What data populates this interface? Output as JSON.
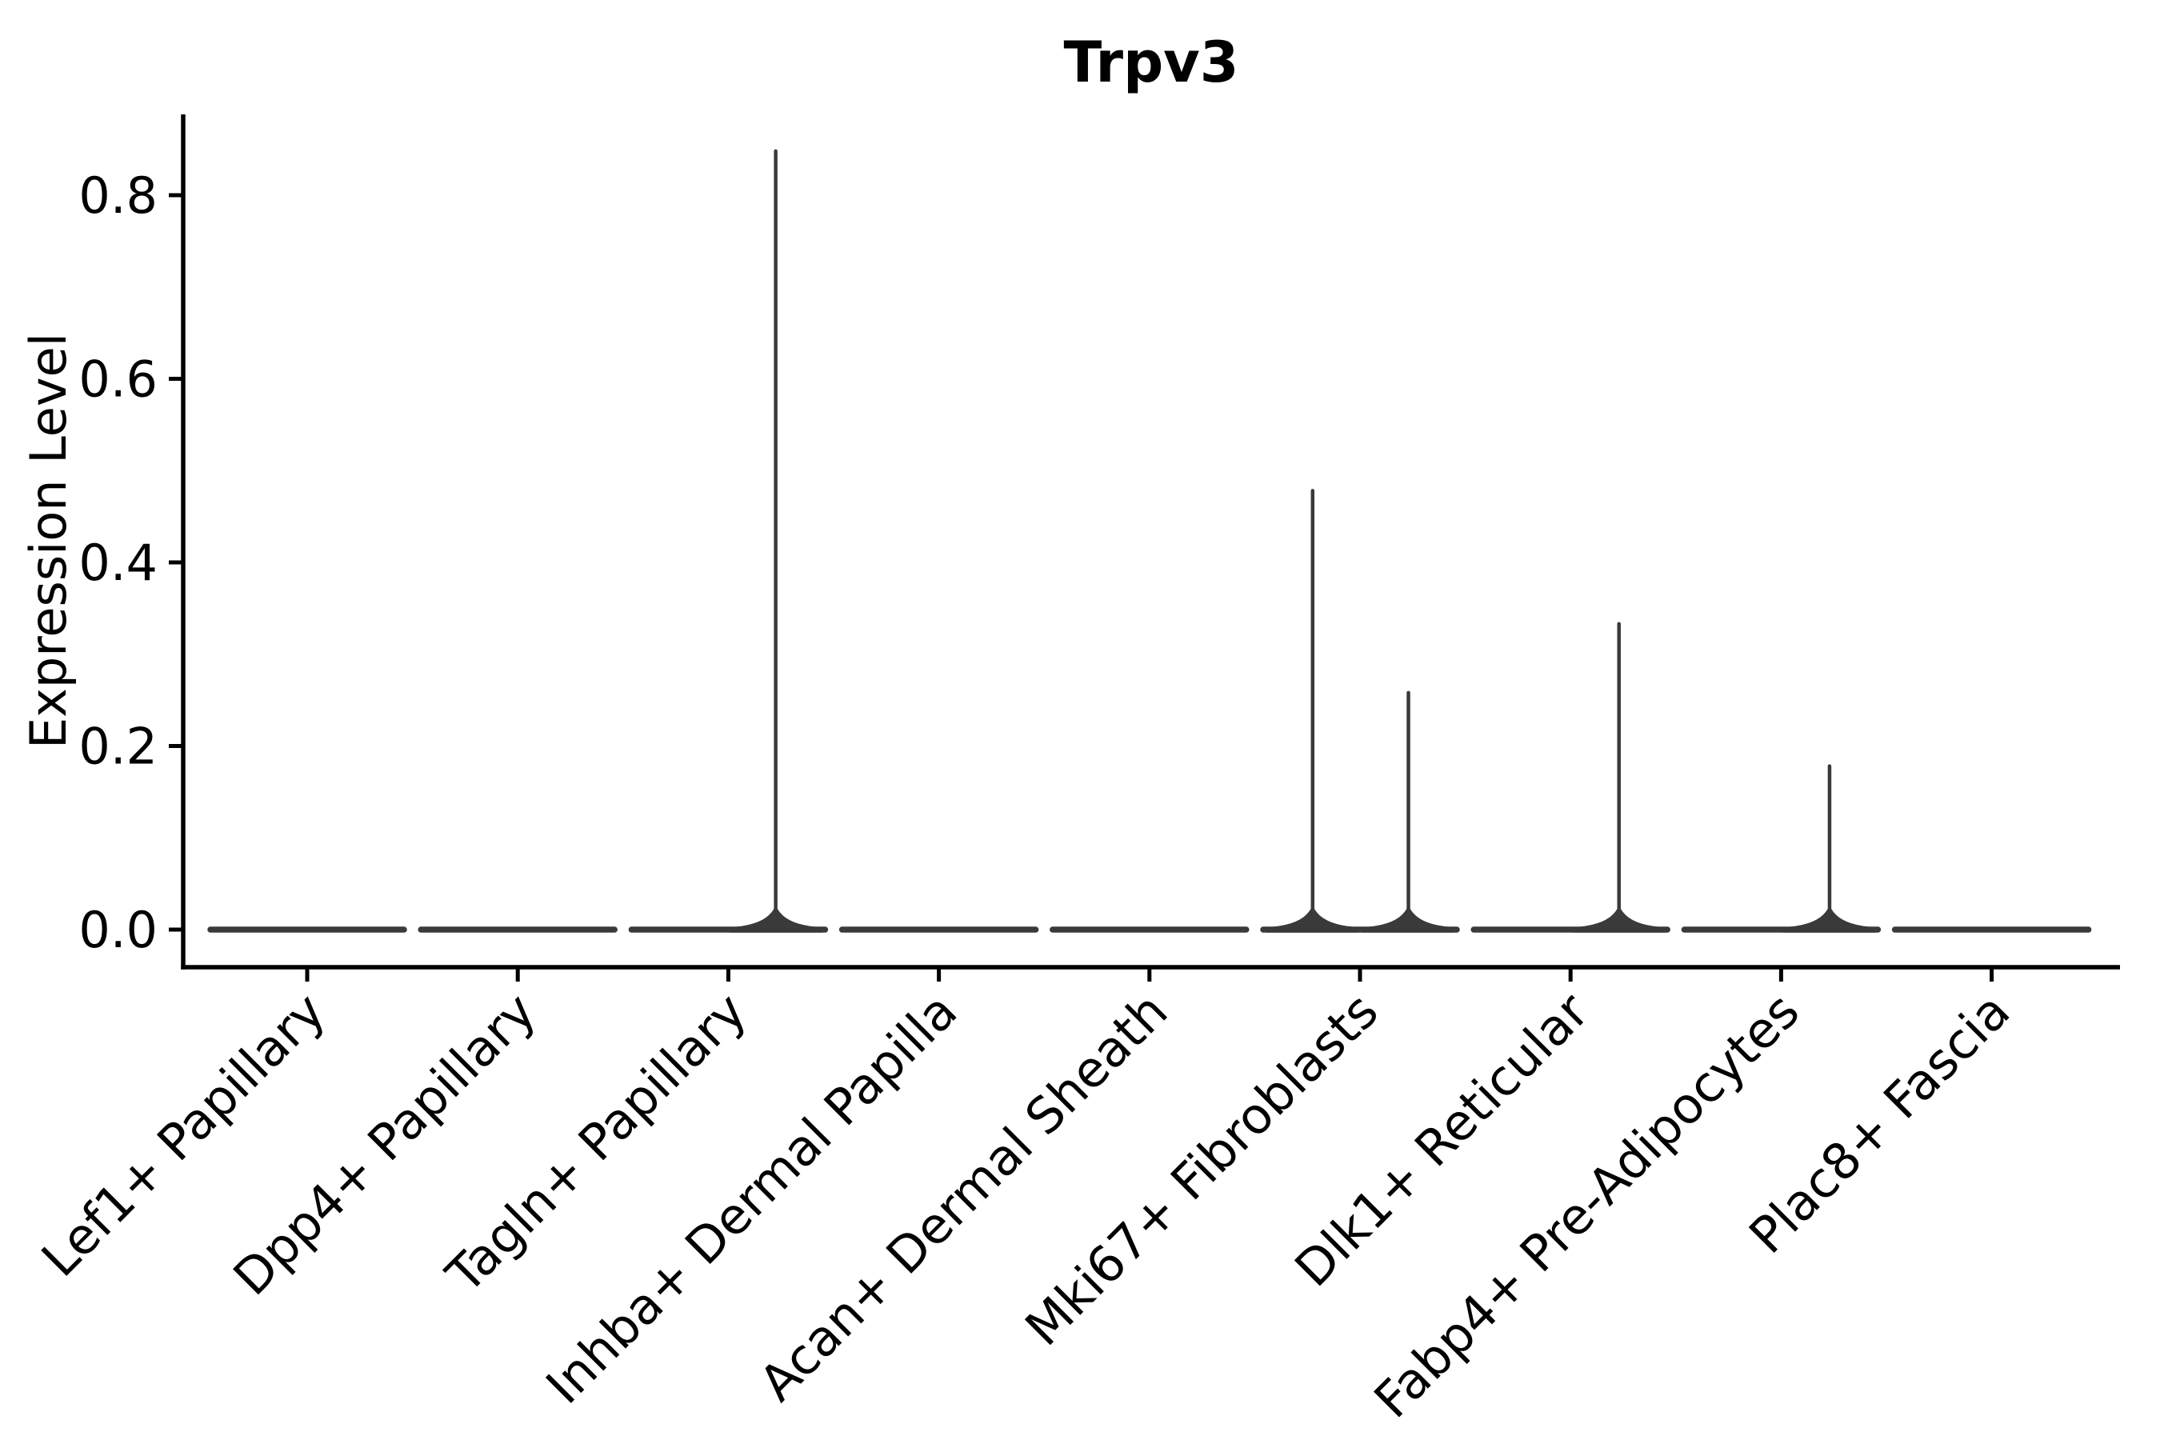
{
  "chart_data": {
    "type": "violin",
    "title": "Trpv3",
    "xlabel": "",
    "ylabel": "Expression Level",
    "yticks": [
      0.0,
      0.2,
      0.4,
      0.6,
      0.8
    ],
    "ytick_labels": [
      "0.0",
      "0.2",
      "0.4",
      "0.6",
      "0.8"
    ],
    "ylim": [
      -0.04,
      0.89
    ],
    "grid": false,
    "legend": "none",
    "categories": [
      "Lef1+ Papillary",
      "Dpp4+ Papillary",
      "Tagln+ Papillary",
      "Inhba+ Dermal Papilla",
      "Acan+ Dermal Sheath",
      "Mki67+ Fibroblasts",
      "Dlk1+ Reticular",
      "Fabp4+ Pre-Adipocytes",
      "Plac8+ Fascia"
    ],
    "violins": [
      {
        "category": "Lef1+ Papillary",
        "bulk_at": 0.0,
        "spikes": []
      },
      {
        "category": "Dpp4+ Papillary",
        "bulk_at": 0.0,
        "spikes": []
      },
      {
        "category": "Tagln+ Papillary",
        "bulk_at": 0.0,
        "spikes": [
          {
            "x_offset": 0.225,
            "max_expression": 0.85
          }
        ]
      },
      {
        "category": "Inhba+ Dermal Papilla",
        "bulk_at": 0.0,
        "spikes": []
      },
      {
        "category": "Acan+ Dermal Sheath",
        "bulk_at": 0.0,
        "spikes": []
      },
      {
        "category": "Mki67+ Fibroblasts",
        "bulk_at": 0.0,
        "spikes": [
          {
            "x_offset": -0.225,
            "max_expression": 0.48
          },
          {
            "x_offset": 0.23,
            "max_expression": 0.26
          }
        ]
      },
      {
        "category": "Dlk1+ Reticular",
        "bulk_at": 0.0,
        "spikes": [
          {
            "x_offset": 0.23,
            "max_expression": 0.335
          }
        ]
      },
      {
        "category": "Fabp4+ Pre-Adipocytes",
        "bulk_at": 0.0,
        "spikes": [
          {
            "x_offset": 0.23,
            "max_expression": 0.18
          }
        ]
      },
      {
        "category": "Plac8+ Fascia",
        "bulk_at": 0.0,
        "spikes": []
      }
    ],
    "colors": {
      "violin": "#3A3A3A",
      "axis": "#000000",
      "text": "#000000",
      "background": "#FFFFFF"
    }
  }
}
